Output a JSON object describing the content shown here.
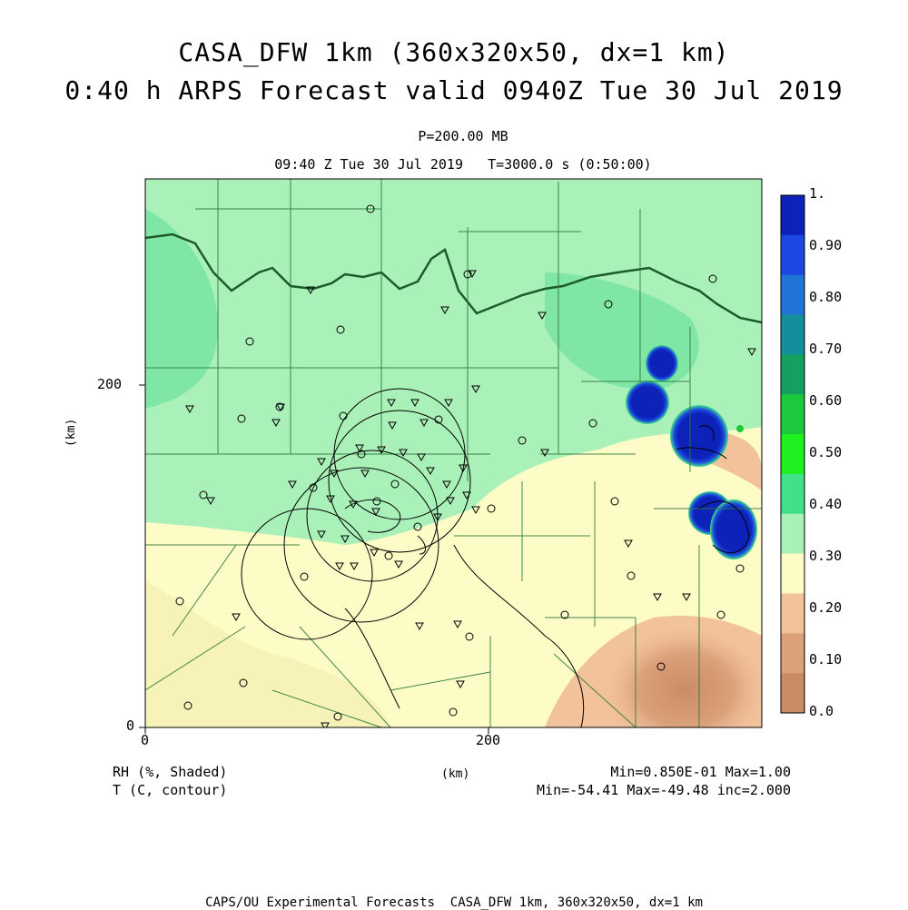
{
  "title_line1": "CASA_DFW 1km (360x320x50, dx=1 km)",
  "title_line2": "0:40 h ARPS Forecast valid 0940Z Tue 30 Jul 2019",
  "level_label": "P=200.00 MB",
  "time_label": "09:40 Z Tue 30 Jul 2019   T=3000.0 s (0:50:00)",
  "axes": {
    "x_ticks": [
      "0",
      "200"
    ],
    "y_ticks": [
      "0",
      "200"
    ],
    "x_unit": "(km)",
    "y_unit": "(km)"
  },
  "legend_left": {
    "shaded": "RH (%, Shaded)",
    "contour": "T (C, contour)"
  },
  "stats": {
    "rh": "Min=0.850E-01 Max=1.00",
    "t": "Min=-54.41 Max=-49.48 inc=2.000"
  },
  "colorbar": {
    "labels": [
      "1.",
      "0.90",
      "0.80",
      "0.70",
      "0.60",
      "0.50",
      "0.40",
      "0.30",
      "0.20",
      "0.10",
      "0.0"
    ],
    "colors": [
      "#0c22b8",
      "#1b48e0",
      "#1f74d6",
      "#138e9a",
      "#14a060",
      "#1cc93c",
      "#20f020",
      "#42e088",
      "#a9f1b9",
      "#fdfcc6",
      "#f2c39a",
      "#dba17b",
      "#c98c66"
    ]
  },
  "footer": "CAPS/OU Experimental Forecasts  CASA_DFW 1km, 360x320x50, dx=1 km"
}
